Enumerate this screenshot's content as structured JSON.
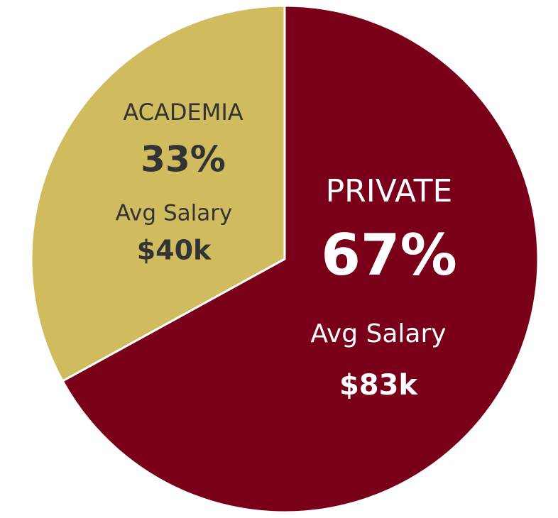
{
  "chart_data": {
    "type": "pie",
    "categories": [
      "PRIVATE",
      "ACADEMIA"
    ],
    "values": [
      67,
      33
    ],
    "value_labels": [
      "67%",
      "33%"
    ],
    "colors": [
      "#7a0019",
      "#d0bb5f"
    ],
    "salary_labels": [
      "Avg Salary",
      "Avg Salary"
    ],
    "salaries": [
      "$83k",
      "$40k"
    ]
  }
}
